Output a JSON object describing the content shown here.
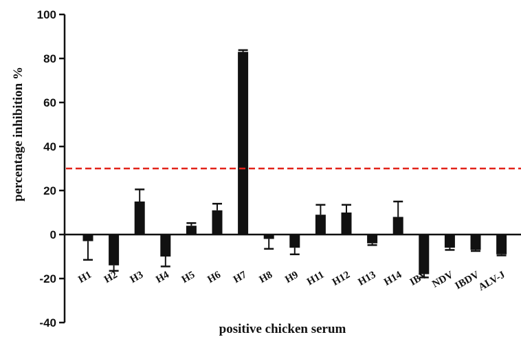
{
  "chart_data": {
    "type": "bar",
    "title": "",
    "xlabel": "positive chicken serum",
    "ylabel": "percentage inhibition %",
    "ylim": [
      -40,
      100
    ],
    "yticks": [
      -40,
      -20,
      0,
      20,
      40,
      60,
      80,
      100
    ],
    "ytick_labels": [
      "-40",
      "-20",
      "0",
      "20",
      "40",
      "60",
      "80",
      "100"
    ],
    "categories": [
      "H1",
      "H2",
      "H3",
      "H4",
      "H5",
      "H6",
      "H7",
      "H8",
      "H9",
      "H11",
      "H12",
      "H13",
      "H14",
      "IBV",
      "NDV",
      "IBDV",
      "ALV-J"
    ],
    "values": [
      -3,
      -14,
      15,
      -10,
      4,
      11,
      83,
      -2,
      -6,
      9,
      10,
      -4,
      8,
      -18,
      -6,
      -7,
      -9
    ],
    "errors": [
      8.5,
      2.5,
      5.5,
      4.5,
      1.2,
      3.0,
      0.8,
      4.5,
      3.0,
      4.5,
      3.5,
      0.8,
      7.0,
      1.5,
      1.0,
      0.5,
      0.5
    ],
    "threshold": 30,
    "colors": {
      "bar": "#111111",
      "threshold": "#e2231a",
      "axis": "#111111"
    },
    "grid": false,
    "legend": "none"
  }
}
